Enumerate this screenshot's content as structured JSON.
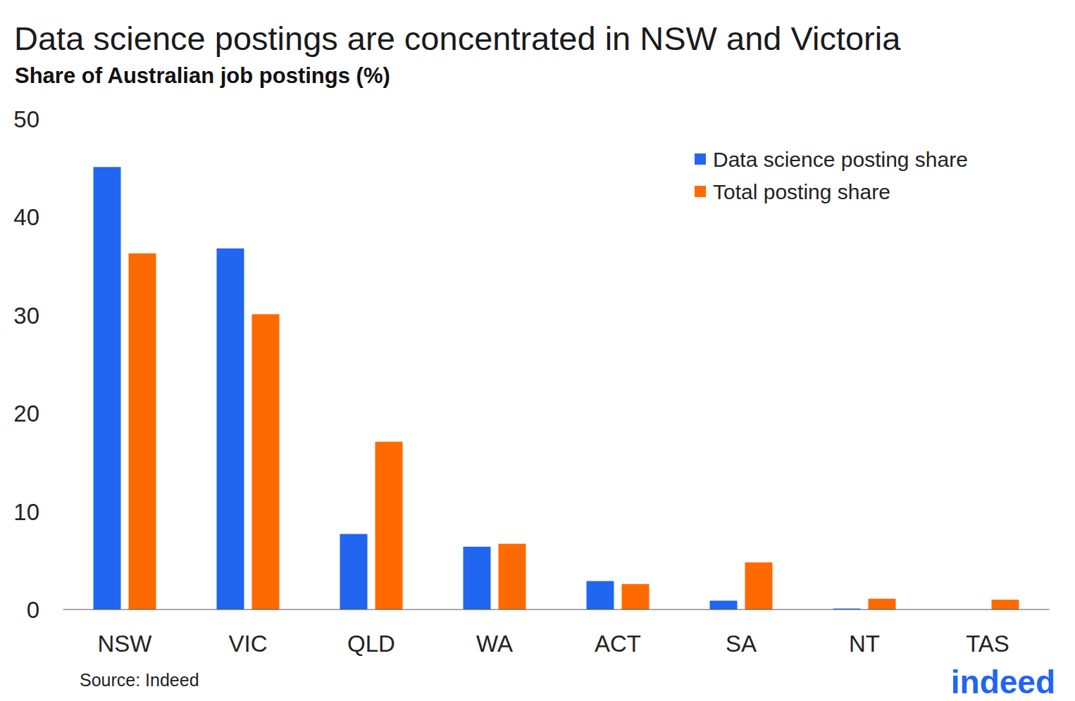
{
  "chart_data": {
    "type": "bar",
    "title": "Data science postings are concentrated in NSW and Victoria",
    "subtitle": "Share of Australian job postings (%)",
    "source": "Source: Indeed",
    "logo": "indeed",
    "categories": [
      "NSW",
      "VIC",
      "QLD",
      "WA",
      "ACT",
      "SA",
      "NT",
      "TAS"
    ],
    "series": [
      {
        "name": "Data science posting share",
        "color": "#2166f0",
        "values": [
          45.1,
          36.8,
          7.7,
          6.4,
          2.9,
          0.9,
          0.1,
          0
        ]
      },
      {
        "name": "Total posting share",
        "color": "#ff6a00",
        "values": [
          36.3,
          30.1,
          17.1,
          6.7,
          2.6,
          4.8,
          1.1,
          1.0
        ]
      }
    ],
    "ylim": [
      0,
      50
    ],
    "yticks": [
      0,
      10,
      20,
      30,
      40,
      50
    ],
    "grid": false,
    "legend": "top-right"
  }
}
